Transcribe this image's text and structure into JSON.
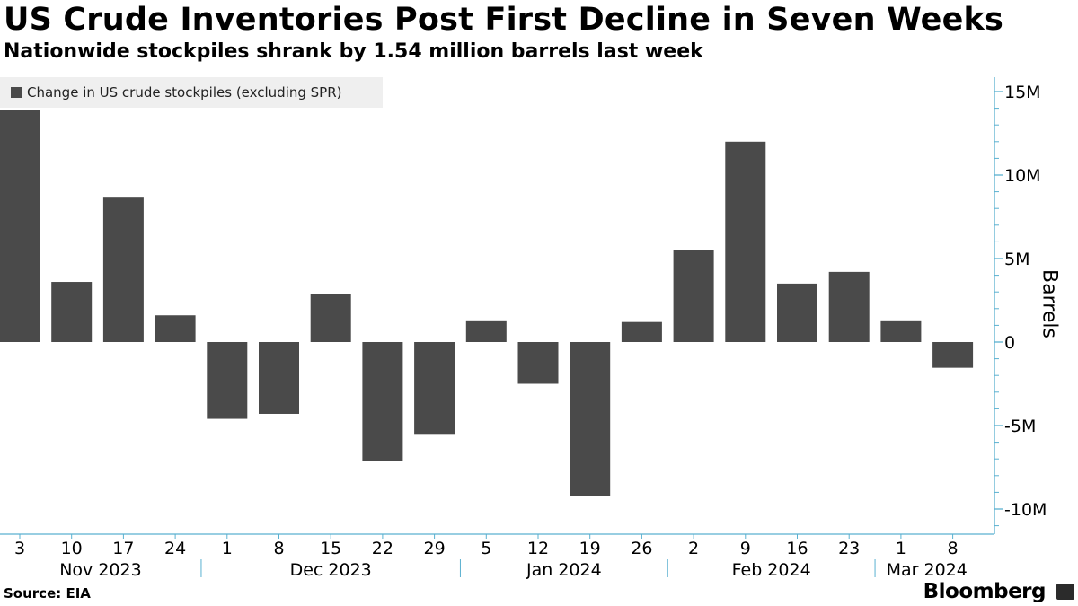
{
  "title": "US Crude Inventories Post First Decline in Seven Weeks",
  "subtitle": "Nationwide stockpiles shrank by 1.54 million barrels last week",
  "source": "Source: EIA",
  "brand": "Bloomberg",
  "colors": {
    "bar": "#4a4a4a",
    "axis": "#5ab0d0",
    "legend_bg": "#efefef"
  },
  "chart_data": {
    "type": "bar",
    "title": "US Crude Inventories Post First Decline in Seven Weeks",
    "subtitle": "Nationwide stockpiles shrank by 1.54 million barrels last week",
    "ylabel": "Barrels",
    "legend": "Change in US crude stockpiles (excluding SPR)",
    "legend_position": "top-left",
    "ylim": [
      -11500000,
      16000000
    ],
    "yticks": [
      15000000,
      10000000,
      5000000,
      0,
      -5000000,
      -10000000
    ],
    "ytick_labels": [
      "15M",
      "10M",
      "5M",
      "0",
      "-5M",
      "-10M"
    ],
    "grid": false,
    "categories": [
      "3",
      "10",
      "17",
      "24",
      "1",
      "8",
      "15",
      "22",
      "29",
      "5",
      "12",
      "19",
      "26",
      "2",
      "9",
      "16",
      "23",
      "1",
      "8"
    ],
    "month_labels": [
      {
        "label": "Nov 2023",
        "start": 0,
        "end": 3
      },
      {
        "label": "Dec 2023",
        "start": 4,
        "end": 8
      },
      {
        "label": "Jan 2024",
        "start": 9,
        "end": 12
      },
      {
        "label": "Feb 2024",
        "start": 13,
        "end": 16
      },
      {
        "label": "Mar 2024",
        "start": 17,
        "end": 18
      }
    ],
    "series": [
      {
        "name": "Change in US crude stockpiles (excluding SPR)",
        "values": [
          13900000,
          3600000,
          8700000,
          1600000,
          -4600000,
          -4300000,
          2900000,
          -7100000,
          -5500000,
          1300000,
          -2500000,
          -9200000,
          1200000,
          5500000,
          12000000,
          3500000,
          4200000,
          1300000,
          -1540000
        ]
      }
    ]
  }
}
